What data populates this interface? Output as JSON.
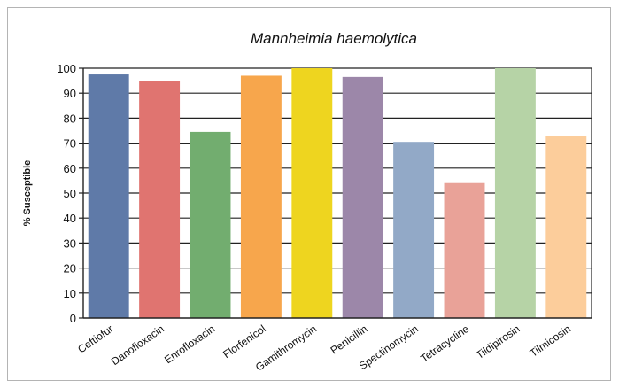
{
  "chart_data": {
    "type": "bar",
    "title": "Mannheimia haemolytica",
    "ylabel": "% Susceptible",
    "xlabel": "",
    "ylim": [
      0,
      100
    ],
    "yticks": [
      0,
      10,
      20,
      30,
      40,
      50,
      60,
      70,
      80,
      90,
      100
    ],
    "grid": true,
    "categories": [
      "Ceftiofur",
      "Danofloxacin",
      "Enrofloxacin",
      "Florfenicol",
      "Gamithromycin",
      "Penicillin",
      "Spectinomycin",
      "Tetracycline",
      "Tildipirosin",
      "Tilmicosin"
    ],
    "values": [
      97.5,
      95,
      74.5,
      97,
      100,
      96.5,
      70.5,
      54,
      100,
      73
    ],
    "colors": [
      "#5f7aa8",
      "#e07470",
      "#72ad6f",
      "#f7a64c",
      "#eed51f",
      "#9c87a9",
      "#92a9c7",
      "#e9a298",
      "#b6d3a6",
      "#fccd9b"
    ]
  }
}
